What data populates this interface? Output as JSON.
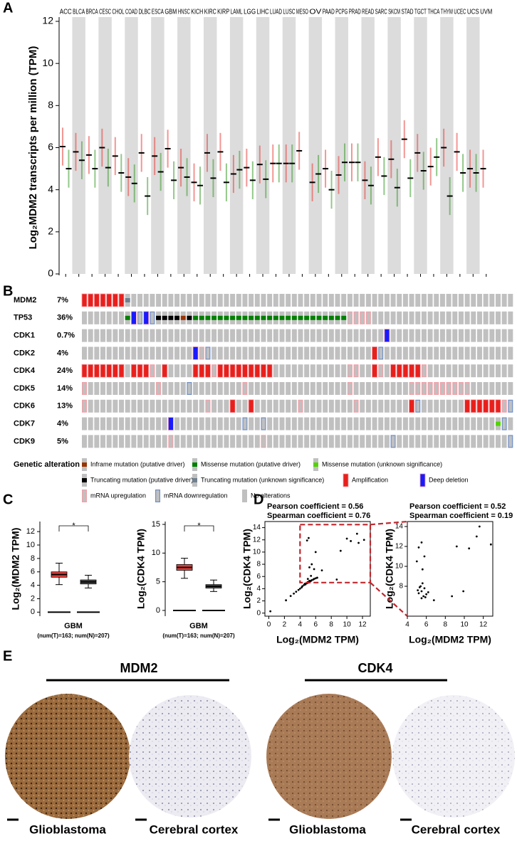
{
  "panels": [
    "A",
    "B",
    "C",
    "D",
    "E"
  ],
  "chart_data": [
    {
      "type": "strip",
      "ylabel": "Log₂MDM2 transcripts per million (TPM)",
      "categories": [
        "ACC",
        "BLCA",
        "BRCA",
        "CESC",
        "CHOL",
        "COAD",
        "DLBC",
        "ESCA",
        "GBM",
        "HNSC",
        "KICH",
        "KIRC",
        "KIRP",
        "LAML",
        "LGG",
        "LIHC",
        "LUAD",
        "LUSC",
        "MESO",
        "OV",
        "PAAD",
        "PCPG",
        "PRAD",
        "READ",
        "SARC",
        "SKCM",
        "STAD",
        "TGCT",
        "THCA",
        "THYM",
        "UCEC",
        "UCS",
        "UVM"
      ],
      "label_colors": [
        "#e8403a",
        "#000000",
        "#000000",
        "#000000",
        "#000000",
        "#000000",
        "#e8403a",
        "#000000",
        "#e8403a",
        "#000000",
        "#000000",
        "#e8403a",
        "#e8403a",
        "#000000",
        "#000000",
        "#000000",
        "#000000",
        "#000000",
        "#000000",
        "#000000",
        "#000000",
        "#000000",
        "#000000",
        "#000000",
        "#000000",
        "#000000",
        "#e8403a",
        "#e8403a",
        "#000000",
        "#e8403a",
        "#000000",
        "#000000",
        "#000000"
      ],
      "tumor_color": "#e8403a",
      "normal_color": "#3a9a2a",
      "tumor_medians": [
        6.05,
        5.8,
        5.65,
        6.0,
        5.6,
        4.6,
        5.75,
        5.6,
        5.95,
        5.05,
        4.35,
        5.75,
        5.8,
        4.75,
        5.05,
        5.2,
        5.25,
        5.25,
        5.85,
        4.35,
        5.0,
        4.7,
        5.3,
        4.45,
        5.55,
        5.45,
        6.4,
        5.75,
        5.1,
        6.0,
        5.8,
        5.0,
        5.0
      ],
      "normal_medians": [
        5.0,
        5.4,
        5.0,
        5.05,
        4.8,
        4.3,
        3.7,
        4.85,
        4.45,
        4.6,
        4.2,
        4.55,
        4.35,
        4.95,
        4.45,
        4.5,
        5.25,
        5.25,
        null,
        4.75,
        4.0,
        5.3,
        5.3,
        4.2,
        4.65,
        4.1,
        4.55,
        4.9,
        5.55,
        3.7,
        4.8,
        4.8,
        null
      ],
      "ylim": [
        0,
        12
      ],
      "yticks": [
        0,
        2,
        4,
        6,
        8,
        10,
        12
      ]
    },
    {
      "type": "oncoprint",
      "legend_title": "Genetic alteration",
      "alterations": [
        {
          "name": "Inframe mutation (putative driver)",
          "color": "#993404",
          "style": "bar"
        },
        {
          "name": "Missense mutation (putative driver)",
          "color": "#008000",
          "style": "bar"
        },
        {
          "name": "Missense mutation (unknown significance)",
          "color": "#53d400",
          "style": "bar"
        },
        {
          "name": "Truncating mutation (putative driver)",
          "color": "#000000",
          "style": "bar"
        },
        {
          "name": "Truncating mutation (unknown significance)",
          "color": "#708090",
          "style": "bar"
        },
        {
          "name": "Amplification",
          "color": "#e8201c",
          "style": "full"
        },
        {
          "name": "Deep deletion",
          "color": "#1a1aff",
          "style": "full"
        },
        {
          "name": "mRNA upregulation",
          "color": "#f0a0a8",
          "style": "outline"
        },
        {
          "name": "mRNA downregulation",
          "color": "#6e8fc8",
          "style": "outline"
        },
        {
          "name": "No alterations",
          "color": "#c0c0c0",
          "style": "none"
        }
      ],
      "genes": [
        {
          "name": "MDM2",
          "percent": "7%",
          "runs": [
            [
              5,
              7
            ],
            [
              4,
              1
            ],
            [
              9,
              62
            ]
          ]
        },
        {
          "name": "TP53",
          "percent": "36%",
          "runs": [
            [
              9,
              7
            ],
            [
              1,
              1
            ],
            [
              6,
              1
            ],
            [
              8,
              1
            ],
            [
              6,
              1
            ],
            [
              8,
              1
            ],
            [
              3,
              4
            ],
            [
              0,
              1
            ],
            [
              3,
              1
            ],
            [
              1,
              25
            ],
            [
              7,
              4
            ],
            [
              9,
              23
            ]
          ]
        },
        {
          "name": "CDK1",
          "percent": "0.7%",
          "runs": [
            [
              9,
              49
            ],
            [
              6,
              1
            ],
            [
              9,
              20
            ]
          ]
        },
        {
          "name": "CDK2",
          "percent": "4%",
          "runs": [
            [
              9,
              18
            ],
            [
              6,
              1
            ],
            [
              7,
              1
            ],
            [
              8,
              1
            ],
            [
              9,
              26
            ],
            [
              5,
              1
            ],
            [
              8,
              1
            ],
            [
              9,
              21
            ]
          ]
        },
        {
          "name": "CDK4",
          "percent": "24%",
          "runs": [
            [
              5,
              7
            ],
            [
              9,
              1
            ],
            [
              5,
              3
            ],
            [
              7,
              1
            ],
            [
              9,
              1
            ],
            [
              5,
              1
            ],
            [
              9,
              4
            ],
            [
              5,
              3
            ],
            [
              7,
              1
            ],
            [
              5,
              9
            ],
            [
              9,
              12
            ],
            [
              7,
              2
            ],
            [
              9,
              2
            ],
            [
              5,
              1
            ],
            [
              7,
              1
            ],
            [
              9,
              1
            ],
            [
              5,
              5
            ],
            [
              7,
              1
            ],
            [
              9,
              14
            ]
          ]
        },
        {
          "name": "CDK5",
          "percent": "14%",
          "runs": [
            [
              7,
              1
            ],
            [
              9,
              11
            ],
            [
              7,
              1
            ],
            [
              9,
              4
            ],
            [
              8,
              1
            ],
            [
              9,
              8
            ],
            [
              7,
              1
            ],
            [
              9,
              16
            ],
            [
              7,
              1
            ],
            [
              9,
              9
            ],
            [
              7,
              10
            ],
            [
              9,
              7
            ]
          ]
        },
        {
          "name": "CDK6",
          "percent": "13%",
          "runs": [
            [
              7,
              1
            ],
            [
              9,
              19
            ],
            [
              7,
              1
            ],
            [
              9,
              3
            ],
            [
              5,
              1
            ],
            [
              9,
              2
            ],
            [
              5,
              1
            ],
            [
              9,
              7
            ],
            [
              7,
              1
            ],
            [
              9,
              8
            ],
            [
              7,
              1
            ],
            [
              9,
              8
            ],
            [
              5,
              1
            ],
            [
              8,
              1
            ],
            [
              9,
              7
            ],
            [
              5,
              6
            ],
            [
              7,
              1
            ],
            [
              8,
              1
            ]
          ]
        },
        {
          "name": "CDK7",
          "percent": "4%",
          "runs": [
            [
              9,
              14
            ],
            [
              6,
              1
            ],
            [
              9,
              11
            ],
            [
              8,
              1
            ],
            [
              9,
              2
            ],
            [
              8,
              1
            ],
            [
              9,
              37
            ],
            [
              2,
              1
            ],
            [
              8,
              1
            ],
            [
              9,
              1
            ]
          ]
        },
        {
          "name": "CDK9",
          "percent": "5%",
          "runs": [
            [
              9,
              14
            ],
            [
              7,
              1
            ],
            [
              9,
              14
            ],
            [
              7,
              1
            ],
            [
              9,
              20
            ],
            [
              8,
              1
            ],
            [
              9,
              18
            ],
            [
              8,
              1
            ]
          ]
        }
      ]
    },
    {
      "type": "box",
      "ylabel": "Log₂(MDM2 TPM)",
      "category": "GBM",
      "note": "(num(T)=163; num(N)=207)",
      "significance": "*",
      "ylim": [
        -0.6,
        13.5
      ],
      "yticks": [
        0,
        2,
        4,
        6,
        8,
        10,
        12
      ],
      "boxes": [
        {
          "color": "#e8403a",
          "whisker_low": 4.1,
          "q1": 5.2,
          "median": 5.6,
          "q3": 6.0,
          "whisker_high": 7.3
        },
        {
          "color": "#555555",
          "whisker_low": 3.6,
          "q1": 4.2,
          "median": 4.5,
          "q3": 4.8,
          "whisker_high": 5.5
        }
      ]
    },
    {
      "type": "box",
      "ylabel": "Log₂(CDK4 TPM)",
      "category": "GBM",
      "note": "(num(T)=163; num(N)=207)",
      "significance": "*",
      "ylim": [
        -1,
        15.5
      ],
      "yticks": [
        0,
        5,
        10,
        15
      ],
      "boxes": [
        {
          "color": "#e8403a",
          "whisker_low": 5.6,
          "q1": 7.0,
          "median": 7.5,
          "q3": 8.0,
          "whisker_high": 9.1
        },
        {
          "color": "#555555",
          "whisker_low": 3.3,
          "q1": 3.9,
          "median": 4.2,
          "q3": 4.5,
          "whisker_high": 5.3
        }
      ]
    },
    {
      "type": "scatter",
      "texts": [
        "Pearson coefficient = 0.56",
        "Spearman coefficient = 0.76"
      ],
      "xlabel": "Log₂(MDM2 TPM)",
      "ylabel": "Log₂(CDK4 TPM)",
      "xlim": [
        -0.5,
        13
      ],
      "ylim": [
        -0.5,
        15
      ],
      "xticks": [
        0,
        2,
        4,
        6,
        8,
        10,
        12
      ],
      "yticks": [
        0,
        2,
        4,
        6,
        8,
        10,
        12,
        14
      ],
      "x": [
        4.2,
        4.5,
        4.8,
        5.0,
        5.2,
        5.5,
        5.8,
        6.0,
        4.0,
        4.6,
        5.3,
        5.7,
        4.3,
        4.9,
        5.1,
        3.8,
        3.5,
        6.2,
        5.4,
        4.7,
        5.2,
        5.5,
        5.8,
        4.9,
        5.1,
        6.0,
        10.0,
        11.3,
        11.5,
        10.5,
        12.2,
        8.7,
        6.8,
        9.2,
        0.2,
        2.2,
        2.8,
        3.2,
        5.0,
        5.4
      ],
      "y": [
        4.2,
        4.6,
        4.9,
        5.1,
        5.3,
        5.4,
        5.6,
        5.7,
        4.0,
        4.8,
        5.2,
        5.5,
        4.4,
        4.9,
        5.0,
        3.8,
        3.5,
        5.8,
        5.3,
        4.7,
        7.5,
        8.0,
        7.2,
        11.9,
        12.3,
        10.0,
        12.2,
        13.0,
        11.5,
        11.8,
        12.0,
        5.5,
        7.0,
        10.2,
        0.3,
        2.1,
        2.8,
        3.2,
        5.6,
        6.1
      ]
    },
    {
      "type": "scatter",
      "texts": [
        "Pearson coefficient = 0.52",
        "Spearman coefficient = 0.19"
      ],
      "xlabel": "Log₂(MDM2 TPM)",
      "ylabel": "Log₂(CDK4 TPM)",
      "xlim": [
        4,
        13
      ],
      "ylim": [
        5,
        14.5
      ],
      "xticks": [
        4,
        6,
        8,
        10,
        12
      ],
      "yticks": [
        8,
        10,
        12,
        14
      ],
      "x": [
        5.2,
        5.5,
        5.8,
        6.0,
        5.4,
        5.7,
        5.1,
        6.2,
        5.6,
        5.9,
        5.3,
        5.5,
        5.2,
        5.5,
        5.8,
        5.0,
        5.6,
        9.2,
        10.5,
        11.3,
        11.6,
        12.8,
        9.9,
        8.7,
        6.8
      ],
      "y": [
        7.3,
        7.5,
        7.8,
        7.2,
        8.0,
        7.0,
        7.6,
        7.4,
        8.3,
        6.9,
        7.9,
        6.8,
        11.9,
        12.4,
        11.0,
        10.5,
        9.7,
        12.0,
        11.8,
        13.0,
        14.0,
        12.2,
        7.5,
        7.0,
        6.6
      ]
    }
  ],
  "figure_e": {
    "genes": [
      "MDM2",
      "CDK4"
    ],
    "labels": [
      "Glioblastoma",
      "Cerebral cortex",
      "Glioblastoma",
      "Cerebral cortex"
    ]
  }
}
